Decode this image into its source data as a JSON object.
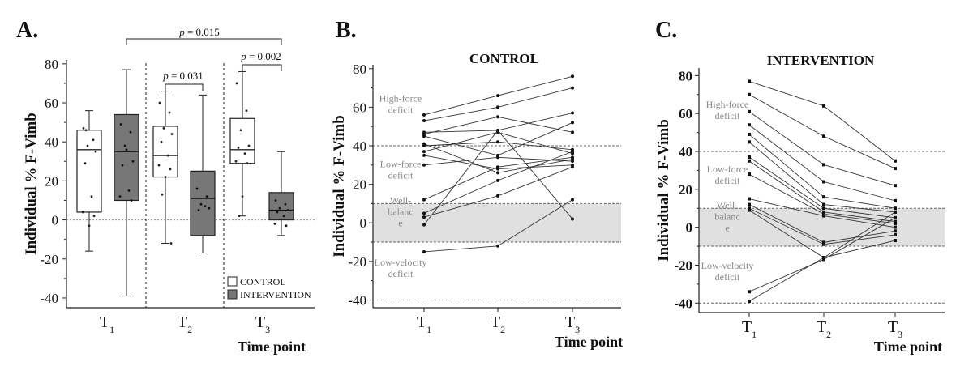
{
  "chart_data": [
    {
      "panel_label": "A.",
      "type": "box",
      "ylabel": "Individual % F-Vimb",
      "xlabel": "Time point",
      "ylim": [
        -45,
        82
      ],
      "yticks": [
        -40,
        -20,
        0,
        20,
        40,
        60,
        80
      ],
      "groups": [
        {
          "label": "T",
          "sub": "1"
        },
        {
          "label": "T",
          "sub": "2"
        },
        {
          "label": "T",
          "sub": "3"
        }
      ],
      "legend": [
        {
          "label": "CONTROL",
          "color": "#ffffff"
        },
        {
          "label": "INTERVENTION",
          "color": "#777777"
        }
      ],
      "boxes": [
        {
          "group": 0,
          "series": "CONTROL",
          "min": -16,
          "q1": 4,
          "median": 36,
          "q3": 46,
          "max": 56,
          "points": [
            47,
            41,
            38,
            35,
            29,
            12,
            4,
            2,
            -3,
            46
          ]
        },
        {
          "group": 0,
          "series": "INTERVENTION",
          "min": -39,
          "q1": 10,
          "median": 35,
          "q3": 54,
          "max": 77,
          "points": [
            49,
            45,
            38,
            30,
            28,
            15,
            12,
            10,
            36
          ]
        },
        {
          "group": 1,
          "series": "CONTROL",
          "min": -12,
          "q1": 22,
          "median": 33,
          "q3": 48,
          "max": 66,
          "points": [
            60,
            55,
            47,
            44,
            40,
            33,
            28,
            26,
            22,
            13,
            -12
          ]
        },
        {
          "group": 1,
          "series": "INTERVENTION",
          "min": -17,
          "q1": -8,
          "median": 11,
          "q3": 25,
          "max": 64,
          "points": [
            16,
            12,
            8,
            6,
            5,
            7
          ]
        },
        {
          "group": 2,
          "series": "CONTROL",
          "min": 2,
          "q1": 29,
          "median": 36,
          "q3": 52,
          "max": 76,
          "points": [
            70,
            56,
            46,
            38,
            37,
            34,
            30,
            29,
            12,
            2
          ]
        },
        {
          "group": 2,
          "series": "INTERVENTION",
          "min": -8,
          "q1": 0,
          "median": 5,
          "q3": 14,
          "max": 35,
          "points": [
            10,
            8,
            6,
            5,
            4,
            2,
            -2,
            -3
          ]
        }
      ],
      "annotations": [
        {
          "text": "p = 0.015",
          "from_box": 1,
          "to_box": 5
        },
        {
          "text": "p = 0.031",
          "from_box": 2,
          "to_box": 3
        },
        {
          "text": "p = 0.002",
          "from_box": 4,
          "to_box": 5
        }
      ]
    },
    {
      "panel_label": "B.",
      "type": "line",
      "title": "CONTROL",
      "ylabel": "Individual % F-Vimb",
      "xlabel": "Time point",
      "ylim": [
        -44,
        82
      ],
      "yticks": [
        -40,
        -20,
        0,
        20,
        40,
        60,
        80
      ],
      "x": [
        {
          "label": "T",
          "sub": "1"
        },
        {
          "label": "T",
          "sub": "2"
        },
        {
          "label": "T",
          "sub": "3"
        }
      ],
      "zones": [
        {
          "label": "High-force deficit",
          "lines": [
            "High-force",
            "deficit"
          ],
          "y": 60
        },
        {
          "label": "Low-force deficit",
          "lines": [
            "Low-force",
            "deficit"
          ],
          "y": 26
        },
        {
          "label": "Well-balance",
          "lines": [
            "Well-",
            "balanc",
            "e"
          ],
          "y": 4
        },
        {
          "label": "Low-velocity deficit",
          "lines": [
            "Low-velocity",
            "deficit"
          ],
          "y": -25
        }
      ],
      "band": [
        -10,
        10
      ],
      "dashed_lines": [
        40,
        -40
      ],
      "series": [
        [
          56,
          66,
          76
        ],
        [
          53,
          60,
          70
        ],
        [
          47,
          48,
          57
        ],
        [
          46,
          55,
          47
        ],
        [
          45,
          35,
          52
        ],
        [
          41,
          26,
          33
        ],
        [
          40,
          42,
          38
        ],
        [
          37,
          47,
          36
        ],
        [
          35,
          28,
          30
        ],
        [
          30,
          34,
          32
        ],
        [
          12,
          29,
          34
        ],
        [
          5,
          22,
          37
        ],
        [
          3,
          14,
          29
        ],
        [
          -1,
          48,
          2
        ],
        [
          -15,
          -12,
          12
        ]
      ]
    },
    {
      "panel_label": "C.",
      "type": "line",
      "title": "INTERVENTION",
      "ylabel": "Individual % F-Vimb",
      "xlabel": "Time point",
      "ylim": [
        -45,
        84
      ],
      "yticks": [
        -40,
        -20,
        0,
        20,
        40,
        60,
        80
      ],
      "x": [
        {
          "label": "T",
          "sub": "1"
        },
        {
          "label": "T",
          "sub": "2"
        },
        {
          "label": "T",
          "sub": "3"
        }
      ],
      "zones": [
        {
          "label": "High-force deficit",
          "lines": [
            "High-force",
            "deficit"
          ],
          "y": 60
        },
        {
          "label": "Low-force deficit",
          "lines": [
            "Low-force",
            "deficit"
          ],
          "y": 26
        },
        {
          "label": "Well-balance",
          "lines": [
            "Well-",
            "balanc",
            "e"
          ],
          "y": 4
        },
        {
          "label": "Low-velocity deficit",
          "lines": [
            "Low-velocity",
            "deficit"
          ],
          "y": -25
        }
      ],
      "band": [
        -10,
        10
      ],
      "dashed_lines": [
        40,
        -40
      ],
      "series": [
        [
          77,
          64,
          35
        ],
        [
          70,
          48,
          31
        ],
        [
          61,
          33,
          22
        ],
        [
          54,
          24,
          14
        ],
        [
          49,
          16,
          10
        ],
        [
          45,
          12,
          8
        ],
        [
          37,
          10,
          5
        ],
        [
          35,
          8,
          3
        ],
        [
          28,
          7,
          2
        ],
        [
          15,
          6,
          0
        ],
        [
          12,
          -8,
          -2
        ],
        [
          10,
          -9,
          -4
        ],
        [
          9,
          -16,
          -7
        ],
        [
          -34,
          -17,
          5
        ],
        [
          -39,
          -16,
          8
        ]
      ]
    }
  ]
}
